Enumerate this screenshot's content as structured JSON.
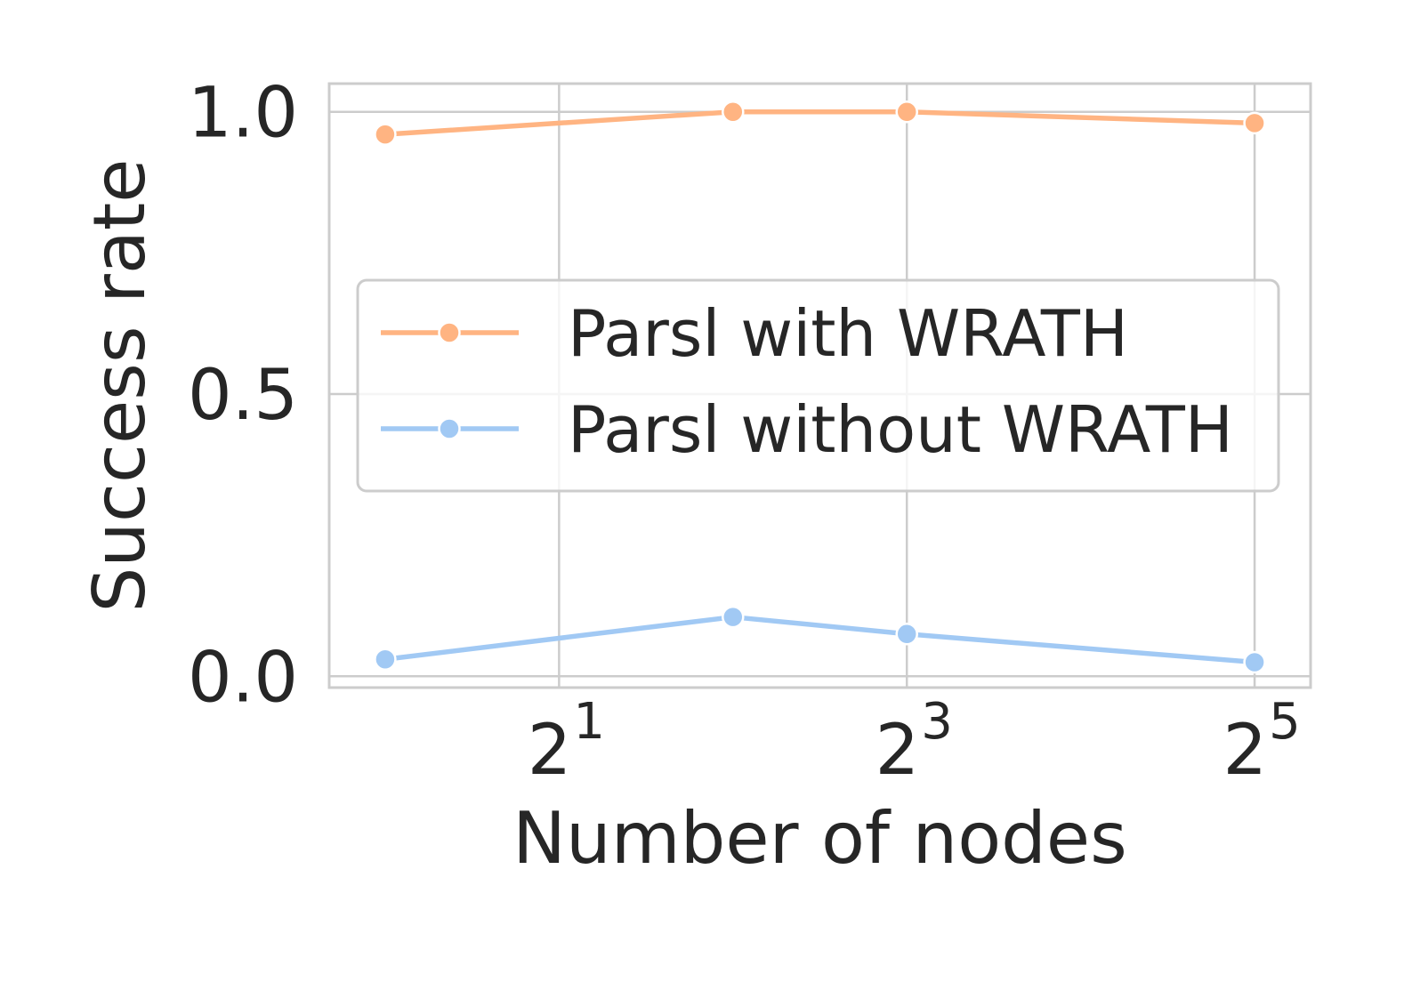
{
  "chart_data": {
    "type": "line",
    "xlabel": "Number of nodes",
    "ylabel": "Success rate",
    "x_scale": "log2",
    "x": [
      1,
      4,
      8,
      32
    ],
    "xlim": [
      0.8,
      40
    ],
    "xticks": [
      {
        "value": 2,
        "base": "2",
        "exp": "1"
      },
      {
        "value": 8,
        "base": "2",
        "exp": "3"
      },
      {
        "value": 32,
        "base": "2",
        "exp": "5"
      }
    ],
    "ylim": [
      -0.02,
      1.05
    ],
    "yticks": [
      {
        "value": 0.0,
        "label": "0.0"
      },
      {
        "value": 0.5,
        "label": "0.5"
      },
      {
        "value": 1.0,
        "label": "1.0"
      }
    ],
    "grid": true,
    "legend_position": "center-right",
    "series": [
      {
        "name": "Parsl with WRATH",
        "color": "#ffb482",
        "values": [
          0.96,
          1.0,
          1.0,
          0.98
        ]
      },
      {
        "name": "Parsl without WRATH",
        "color": "#a1c9f4",
        "values": [
          0.03,
          0.105,
          0.075,
          0.025
        ]
      }
    ]
  }
}
